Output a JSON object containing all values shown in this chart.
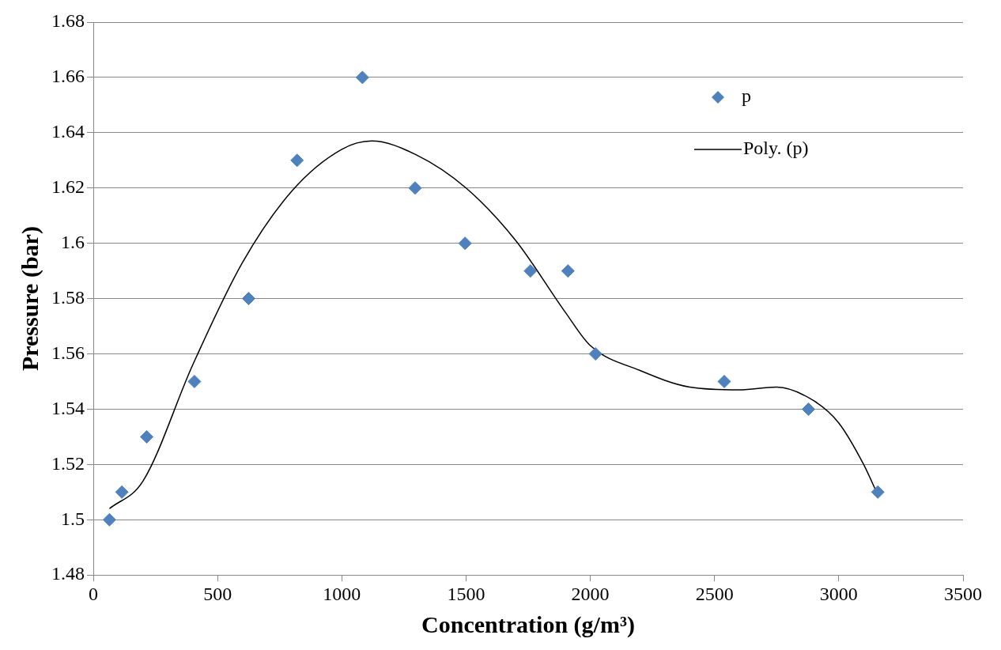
{
  "chart_data": {
    "type": "scatter",
    "xlabel": "Concentration (g/m³)",
    "ylabel": "Pressure (bar)",
    "xlim": [
      0,
      3500
    ],
    "xticks": [
      0,
      500,
      1000,
      1500,
      2000,
      2500,
      3000,
      3500
    ],
    "ylim": [
      1.48,
      1.68
    ],
    "yticks": [
      1.48,
      1.5,
      1.52,
      1.54,
      1.56,
      1.58,
      1.6,
      1.62,
      1.64,
      1.66,
      1.68
    ],
    "grid": "y",
    "legend": "top right",
    "series": [
      {
        "name": "p",
        "color": "#4f81bd",
        "marker": "diamond",
        "x": [
          65,
          115,
          215,
          407,
          625,
          820,
          1083,
          1295,
          1496,
          1759,
          1910,
          2021,
          2539,
          2878,
          3157
        ],
        "values": [
          1.5,
          1.51,
          1.53,
          1.55,
          1.58,
          1.63,
          1.66,
          1.62,
          1.6,
          1.59,
          1.59,
          1.56,
          1.55,
          1.54,
          1.51
        ]
      },
      {
        "name": "Poly. (p)",
        "type": "line",
        "color": "#000000",
        "marker": "none",
        "line_style": "solid",
        "x": [
          65,
          200,
          400,
          600,
          800,
          1000,
          1120,
          1300,
          1500,
          1700,
          1900,
          2000,
          2200,
          2400,
          2600,
          2750,
          2900,
          3000,
          3100,
          3157
        ],
        "values": [
          1.504,
          1.514,
          1.556,
          1.593,
          1.619,
          1.634,
          1.637,
          1.632,
          1.62,
          1.601,
          1.575,
          1.563,
          1.554,
          1.548,
          1.547,
          1.548,
          1.543,
          1.535,
          1.52,
          1.509
        ]
      }
    ]
  }
}
